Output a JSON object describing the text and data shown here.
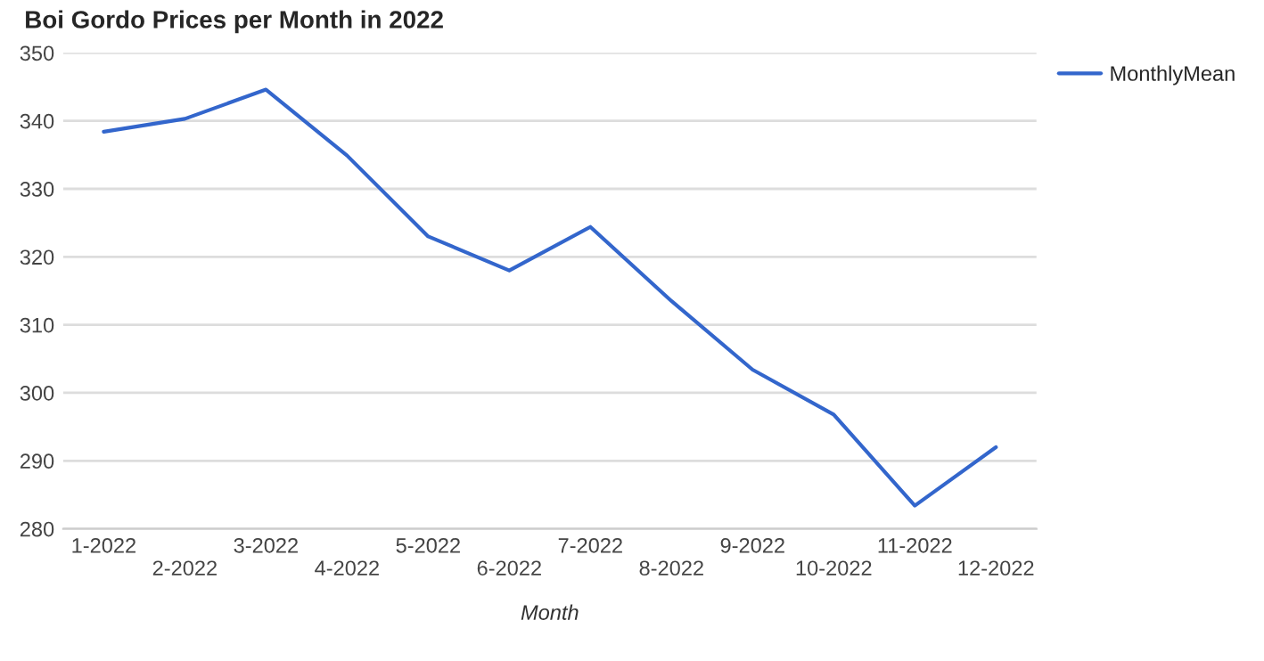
{
  "chart_data": {
    "type": "line",
    "title": "Boi Gordo Prices per Month in 2022",
    "xlabel": "Month",
    "categories": [
      "1-2022",
      "2-2022",
      "3-2022",
      "4-2022",
      "5-2022",
      "6-2022",
      "7-2022",
      "8-2022",
      "9-2022",
      "10-2022",
      "11-2022",
      "12-2022"
    ],
    "series": [
      {
        "name": "MonthlyMean",
        "color": "#3366cc",
        "values": [
          338.4,
          340.3,
          344.6,
          334.9,
          323.0,
          318.0,
          324.4,
          313.5,
          303.4,
          296.8,
          283.4,
          292.0
        ]
      }
    ],
    "ylim": [
      280,
      350
    ],
    "yticks": [
      280,
      290,
      300,
      310,
      320,
      330,
      340,
      350
    ],
    "grid": "y",
    "legend": "top right",
    "marker": "none",
    "line_style": "solid"
  }
}
